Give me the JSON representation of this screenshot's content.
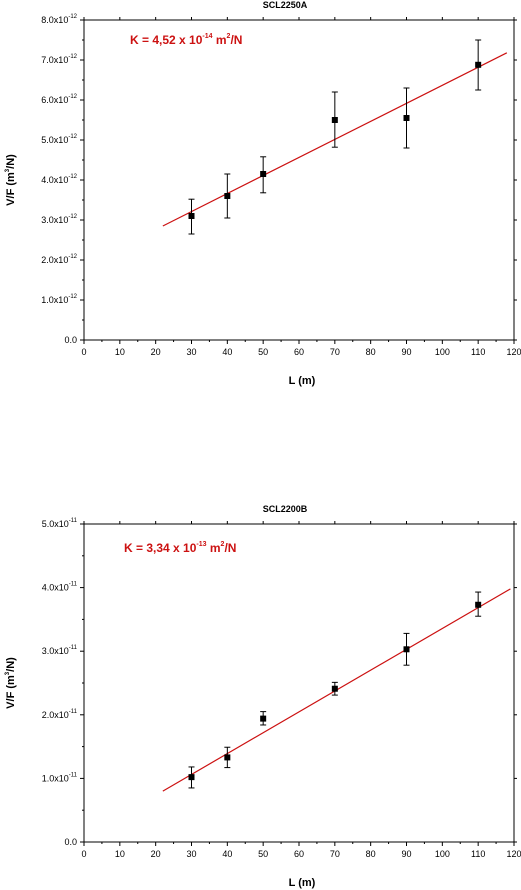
{
  "chart_data": [
    {
      "type": "scatter",
      "title": "SCL2250A",
      "xlabel": "L (m)",
      "ylabel_parts": [
        "V/F (m",
        "3",
        "/N)"
      ],
      "annotation_parts": [
        "K = 4,52 x 10",
        "-14",
        " m",
        "2",
        "/N"
      ],
      "xlim": [
        0,
        120
      ],
      "ylim": [
        0,
        8e-12
      ],
      "x_ticks": [
        0,
        10,
        20,
        30,
        40,
        50,
        60,
        70,
        80,
        90,
        100,
        110,
        120
      ],
      "x_tick_labels": [
        "0",
        "10",
        "20",
        "30",
        "40",
        "50",
        "60",
        "70",
        "80",
        "90",
        "100",
        "110",
        "120"
      ],
      "y_ticks": [
        0,
        1e-12,
        2e-12,
        3e-12,
        4e-12,
        5e-12,
        6e-12,
        7e-12,
        8e-12
      ],
      "y_tick_labels": [
        [
          "0.0",
          ""
        ],
        [
          "1.0x10",
          "-12"
        ],
        [
          "2.0x10",
          "-12"
        ],
        [
          "3.0x10",
          "-12"
        ],
        [
          "4.0x10",
          "-12"
        ],
        [
          "5.0x10",
          "-12"
        ],
        [
          "6.0x10",
          "-12"
        ],
        [
          "7.0x10",
          "-12"
        ],
        [
          "8.0x10",
          "-12"
        ]
      ],
      "series": [
        {
          "x": [
            30,
            40,
            50,
            70,
            90,
            110
          ],
          "y": [
            3.1e-12,
            3.6e-12,
            4.15e-12,
            5.5e-12,
            5.55e-12,
            6.88e-12
          ],
          "err_low": [
            2.65e-12,
            3.05e-12,
            3.68e-12,
            4.82e-12,
            4.8e-12,
            6.25e-12
          ],
          "err_high": [
            3.52e-12,
            4.15e-12,
            4.58e-12,
            6.2e-12,
            6.3e-12,
            7.5e-12
          ]
        }
      ],
      "fit": {
        "x": [
          22,
          118
        ],
        "y": [
          2.85e-12,
          7.18e-12
        ]
      },
      "colors": {
        "points": "#000000",
        "fit": "#cc1111",
        "annotation": "#cc1111"
      }
    },
    {
      "type": "scatter",
      "title": "SCL2200B",
      "xlabel": "L (m)",
      "ylabel_parts": [
        "V/F (m",
        "3",
        "/N)"
      ],
      "annotation_parts": [
        "K = 3,34 x 10",
        "-13",
        " m",
        "2",
        "/N"
      ],
      "xlim": [
        0,
        120
      ],
      "ylim": [
        0,
        5e-11
      ],
      "x_ticks": [
        0,
        10,
        20,
        30,
        40,
        50,
        60,
        70,
        80,
        90,
        100,
        110,
        120
      ],
      "x_tick_labels": [
        "0",
        "10",
        "20",
        "30",
        "40",
        "50",
        "60",
        "70",
        "80",
        "90",
        "100",
        "110",
        "120"
      ],
      "y_ticks": [
        0,
        1e-11,
        2e-11,
        3e-11,
        4e-11,
        5e-11
      ],
      "y_tick_labels": [
        [
          "0.0",
          ""
        ],
        [
          "1.0x10",
          "-11"
        ],
        [
          "2.0x10",
          "-11"
        ],
        [
          "3.0x10",
          "-11"
        ],
        [
          "4.0x10",
          "-11"
        ],
        [
          "5.0x10",
          "-11"
        ]
      ],
      "series": [
        {
          "x": [
            30,
            40,
            50,
            70,
            90,
            110
          ],
          "y": [
            1.02e-11,
            1.33e-11,
            1.94e-11,
            2.41e-11,
            3.03e-11,
            3.73e-11
          ],
          "err_low": [
            8.5e-12,
            1.17e-11,
            1.84e-11,
            2.31e-11,
            2.78e-11,
            3.55e-11
          ],
          "err_high": [
            1.18e-11,
            1.49e-11,
            2.05e-11,
            2.51e-11,
            3.28e-11,
            3.93e-11
          ]
        }
      ],
      "fit": {
        "x": [
          22,
          119
        ],
        "y": [
          8e-12,
          3.98e-11
        ]
      },
      "colors": {
        "points": "#000000",
        "fit": "#cc1111",
        "annotation": "#cc1111"
      }
    }
  ]
}
